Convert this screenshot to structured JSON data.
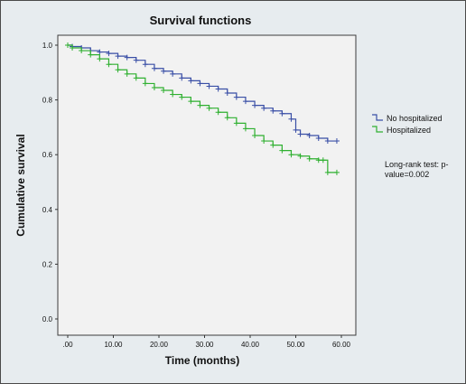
{
  "chart_data": {
    "type": "line",
    "title": "Survival functions",
    "xlabel": "Time (months)",
    "ylabel": "Cumulative survival",
    "xlim": [
      0,
      60
    ],
    "ylim": [
      0,
      1.0
    ],
    "x_ticks": [
      ".00",
      "10.00",
      "20.00",
      "30.00",
      "40.00",
      "50.00",
      "60.00"
    ],
    "y_ticks": [
      "0.0",
      "0.2",
      "0.4",
      "0.6",
      "0.8",
      "1.0"
    ],
    "step_function": true,
    "censor_marker": "+",
    "legend_placement": "right",
    "annotation": "Long-rank test: p-value=0.002",
    "series": [
      {
        "name": "No hospitalized",
        "color": "#3a4fa6",
        "x": [
          0,
          1,
          3,
          5,
          7,
          9,
          11,
          13,
          15,
          17,
          19,
          21,
          23,
          25,
          27,
          29,
          31,
          33,
          35,
          37,
          39,
          41,
          43,
          45,
          47,
          49,
          50,
          51,
          53,
          55,
          57,
          59
        ],
        "y": [
          1.0,
          0.995,
          0.99,
          0.98,
          0.975,
          0.97,
          0.96,
          0.955,
          0.945,
          0.93,
          0.915,
          0.905,
          0.895,
          0.88,
          0.87,
          0.86,
          0.85,
          0.84,
          0.825,
          0.81,
          0.795,
          0.78,
          0.77,
          0.76,
          0.75,
          0.73,
          0.69,
          0.675,
          0.67,
          0.66,
          0.65,
          0.65
        ]
      },
      {
        "name": "Hospitalized",
        "color": "#2fb030",
        "x": [
          0,
          1,
          3,
          5,
          7,
          9,
          11,
          13,
          15,
          17,
          19,
          21,
          23,
          25,
          27,
          29,
          31,
          33,
          35,
          37,
          39,
          41,
          43,
          45,
          47,
          49,
          51,
          53,
          55,
          56,
          57,
          59
        ],
        "y": [
          1.0,
          0.99,
          0.98,
          0.965,
          0.95,
          0.93,
          0.91,
          0.895,
          0.88,
          0.86,
          0.845,
          0.835,
          0.82,
          0.81,
          0.795,
          0.78,
          0.77,
          0.755,
          0.735,
          0.715,
          0.695,
          0.67,
          0.65,
          0.635,
          0.615,
          0.6,
          0.595,
          0.585,
          0.58,
          0.58,
          0.535,
          0.535
        ]
      }
    ]
  }
}
